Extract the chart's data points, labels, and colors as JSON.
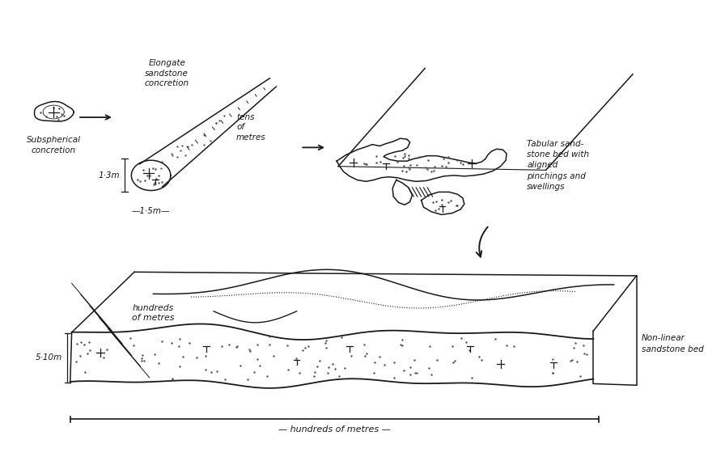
{
  "bg_color": "#ffffff",
  "line_color": "#1a1a1a",
  "dot_color": "#555555",
  "labels": {
    "subsph": "Subspherical\nconcretion",
    "elongate": "Elongate\nsandstone\nconcretion",
    "tens": "tens\nof\nmetres",
    "dim1": "1·3m",
    "dim2": "—1·5m—",
    "tabular": "Tabular sand-\nstone bed with\naligned\npinchings and\nswellings",
    "nonlinear": "Non-linear\nsandstone bed",
    "hundreds1": "hundreds\nof metres",
    "hundreds2": "— hundreds of metres —",
    "dim3": "5·10m"
  }
}
